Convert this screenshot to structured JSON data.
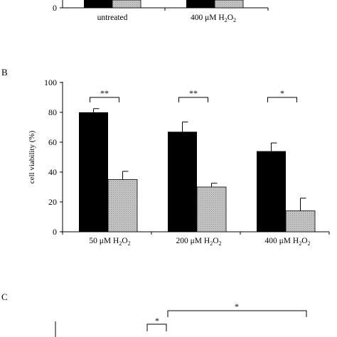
{
  "chart_data": [
    {
      "type": "bar",
      "panel_label": "",
      "categories": [
        {
          "label": "untreated",
          "sub": ""
        },
        {
          "label": "400 μM H",
          "sub": "2",
          "tail": "O",
          "sub2": "2"
        }
      ],
      "series": [
        {
          "color": "#000000",
          "values": [
            null,
            null
          ]
        },
        {
          "color": "#bdbdbd",
          "values": [
            null,
            null
          ]
        }
      ],
      "ylabel": "",
      "yticks": [
        "0"
      ],
      "ylim": [
        0,
        100
      ]
    },
    {
      "type": "bar",
      "panel_label": "B",
      "categories": [
        {
          "label": "50 μM H",
          "sub": "2",
          "tail": "O",
          "sub2": "2"
        },
        {
          "label": "200 μM H",
          "sub": "2",
          "tail": "O",
          "sub2": "2"
        },
        {
          "label": "400 μM H",
          "sub": "2",
          "tail": "O",
          "sub2": "2"
        }
      ],
      "series": [
        {
          "color": "#000000",
          "values": [
            80,
            67,
            54
          ],
          "errors": [
            2.5,
            6.5,
            5.5
          ]
        },
        {
          "color": "#bdbdbd",
          "values": [
            35,
            30,
            14
          ],
          "errors": [
            5.5,
            2.5,
            8.5
          ]
        }
      ],
      "significance": [
        "**",
        "**",
        "*"
      ],
      "ylabel": "cell viability (%)",
      "yticks": [
        "0",
        "20",
        "40",
        "60",
        "80",
        "100"
      ],
      "ylim": [
        0,
        100
      ],
      "grid": false
    },
    {
      "type": "bar",
      "panel_label": "C",
      "significance": [
        "*",
        "*"
      ]
    }
  ]
}
